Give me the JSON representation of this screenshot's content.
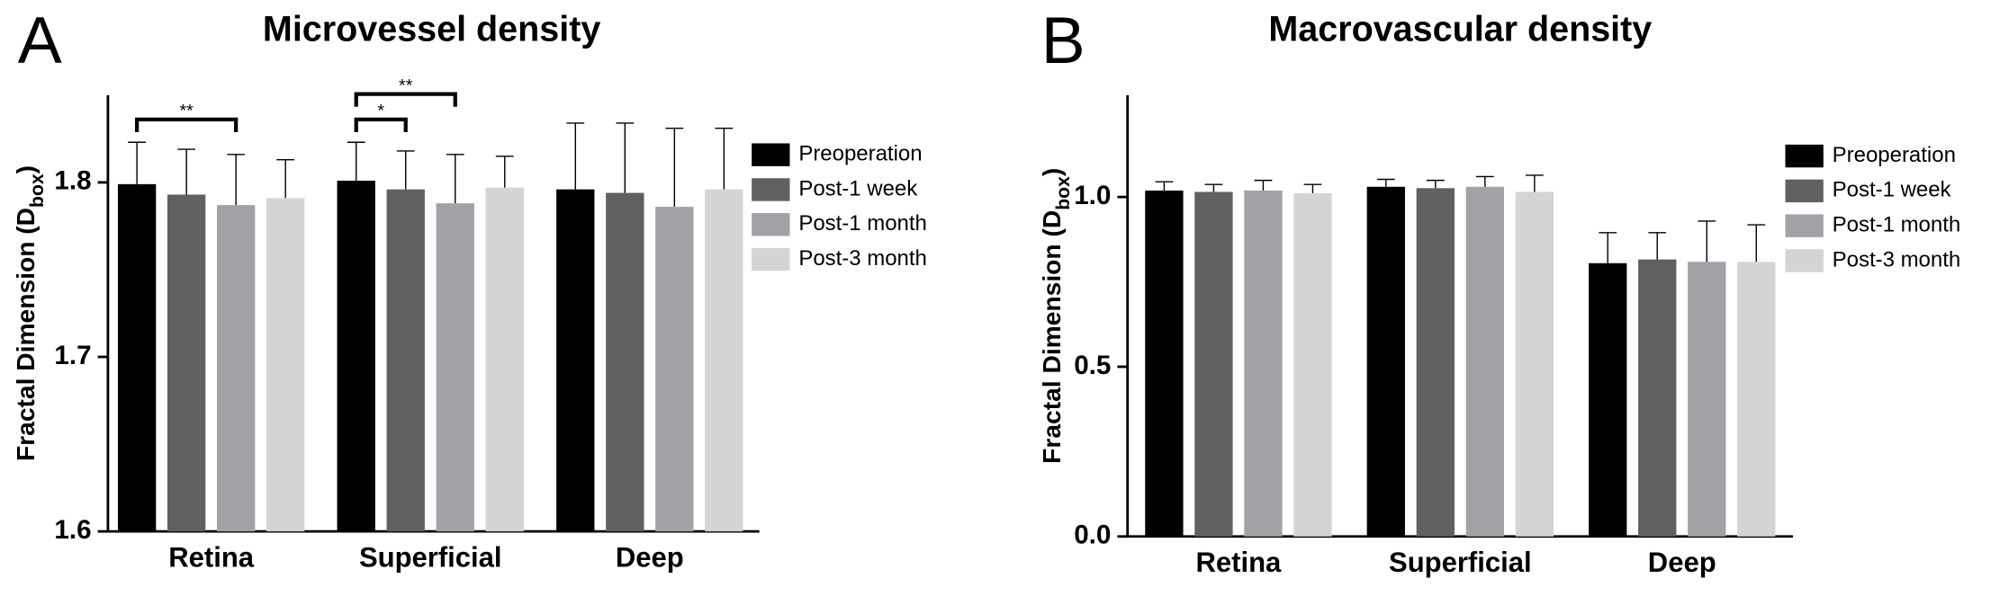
{
  "chart_data": [
    {
      "type": "bar",
      "panel_label": "A",
      "title": "Microvessel density",
      "ylabel": [
        "Fractal Dimension (D",
        "box",
        ")"
      ],
      "categories": [
        "Retina",
        "Superficial",
        "Deep"
      ],
      "series": [
        {
          "name": "Preoperation",
          "color": "#000000",
          "values": [
            1.799,
            1.801,
            1.796
          ],
          "errors": [
            0.024,
            0.022,
            0.038
          ]
        },
        {
          "name": "Post-1 week",
          "color": "#606060",
          "values": [
            1.793,
            1.796,
            1.794
          ],
          "errors": [
            0.026,
            0.022,
            0.04
          ]
        },
        {
          "name": "Post-1 month",
          "color": "#a1a1a6",
          "values": [
            1.787,
            1.788,
            1.786
          ],
          "errors": [
            0.029,
            0.028,
            0.045
          ]
        },
        {
          "name": "Post-3 month",
          "color": "#d4d4d4",
          "values": [
            1.791,
            1.797,
            1.796
          ],
          "errors": [
            0.022,
            0.018,
            0.035
          ]
        }
      ],
      "ylim": [
        1.6,
        1.85
      ],
      "yticks": [
        1.6,
        1.7,
        1.8
      ],
      "annotations": [
        {
          "label": "**",
          "category": "Retina",
          "series": [
            "Preoperation",
            "Post-1 month"
          ]
        },
        {
          "label": "*",
          "category": "Superficial",
          "series": [
            "Preoperation",
            "Post-1 week"
          ]
        },
        {
          "label": "**",
          "category": "Superficial",
          "series": [
            "Preoperation",
            "Post-1 month"
          ]
        }
      ]
    },
    {
      "type": "bar",
      "panel_label": "B",
      "title": "Macrovascular density",
      "ylabel": [
        "Fractal Dimension (D",
        "box",
        ")"
      ],
      "categories": [
        "Retina",
        "Superficial",
        "Deep"
      ],
      "series": [
        {
          "name": "Preoperation",
          "color": "#000000",
          "values": [
            1.019,
            1.03,
            0.805
          ],
          "errors": [
            0.026,
            0.022,
            0.09
          ]
        },
        {
          "name": "Post-1 week",
          "color": "#606060",
          "values": [
            1.015,
            1.026,
            0.816
          ],
          "errors": [
            0.022,
            0.023,
            0.079
          ]
        },
        {
          "name": "Post-1 month",
          "color": "#a1a1a6",
          "values": [
            1.019,
            1.03,
            0.809
          ],
          "errors": [
            0.03,
            0.03,
            0.12
          ]
        },
        {
          "name": "Post-3 month",
          "color": "#d4d4d4",
          "values": [
            1.011,
            1.015,
            0.809
          ],
          "errors": [
            0.026,
            0.049,
            0.109
          ]
        }
      ],
      "ylim": [
        0,
        1.3
      ],
      "yticks": [
        {
          "value": 0,
          "label": "0.0"
        },
        {
          "value": 0.5,
          "label": "0.5"
        },
        {
          "value": 1,
          "label": "1.0"
        }
      ],
      "annotations": []
    }
  ]
}
